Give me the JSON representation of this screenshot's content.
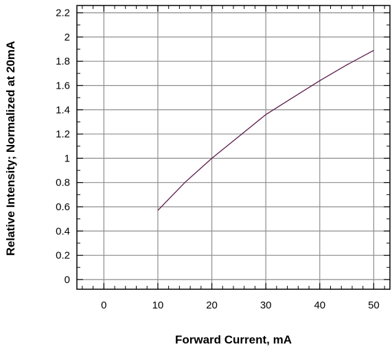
{
  "chart_data": {
    "type": "line",
    "title": "",
    "xlabel": "Forward Current, mA",
    "ylabel": "Relative Intensity; Normalized at 20mA",
    "xlim": [
      -5,
      53
    ],
    "ylim": [
      -0.08,
      2.26
    ],
    "xticks": [
      0,
      10,
      20,
      30,
      40,
      50
    ],
    "xtick_labels": [
      "0",
      "10",
      "20",
      "30",
      "40",
      "50"
    ],
    "yticks": [
      0,
      0.2,
      0.4,
      0.6,
      0.8,
      1,
      1.2,
      1.4,
      1.6,
      1.8,
      2,
      2.2
    ],
    "ytick_labels": [
      "0",
      "0.2",
      "0.4",
      "0.6",
      "0.8",
      "1",
      "1.2",
      "1.4",
      "1.6",
      "1.8",
      "2",
      "2.2"
    ],
    "grid": true,
    "legend": "none",
    "series": [
      {
        "color": "#5a1a4a",
        "x": [
          10,
          15,
          20,
          25,
          30,
          35,
          40,
          45,
          50
        ],
        "y": [
          0.57,
          0.8,
          1.0,
          1.18,
          1.36,
          1.5,
          1.64,
          1.77,
          1.89
        ]
      }
    ]
  }
}
